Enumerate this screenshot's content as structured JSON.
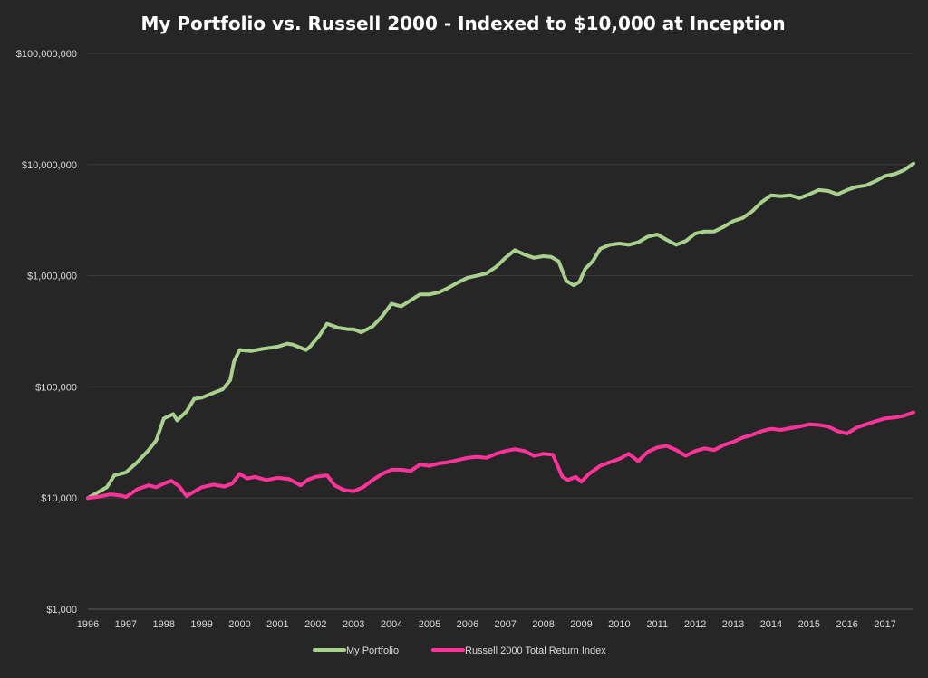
{
  "chart_data": {
    "type": "line",
    "title": "My Portfolio vs. Russell 2000 - Indexed to $10,000 at Inception",
    "xlabel": "",
    "ylabel": "",
    "y_scale": "log",
    "ylim": [
      1000,
      100000000
    ],
    "xlim": [
      1996,
      2017.75
    ],
    "y_ticks": [
      1000,
      10000,
      100000,
      1000000,
      10000000,
      100000000
    ],
    "y_tick_labels": [
      "$1,000",
      "$10,000",
      "$100,000",
      "$1,000,000",
      "$10,000,000",
      "$100,000,000"
    ],
    "x_ticks": [
      1996,
      1997,
      1998,
      1999,
      2000,
      2001,
      2002,
      2003,
      2004,
      2005,
      2006,
      2007,
      2008,
      2009,
      2010,
      2011,
      2012,
      2013,
      2014,
      2015,
      2016,
      2017
    ],
    "x_tick_labels": [
      "1996",
      "1997",
      "1998",
      "1999",
      "2000",
      "2001",
      "2002",
      "2003",
      "2004",
      "2005",
      "2006",
      "2007",
      "2008",
      "2009",
      "2010",
      "2011",
      "2012",
      "2013",
      "2014",
      "2015",
      "2016",
      "2017"
    ],
    "grid": true,
    "legend_position": "bottom",
    "series": [
      {
        "name": "My Portfolio",
        "color": "#a9d18e",
        "x": [
          1996.0,
          1996.5,
          1996.7,
          1997.0,
          1997.3,
          1997.6,
          1997.8,
          1998.0,
          1998.25,
          1998.35,
          1998.6,
          1998.8,
          1999.0,
          1999.3,
          1999.55,
          1999.75,
          1999.85,
          2000.0,
          2000.3,
          2000.6,
          2001.0,
          2001.25,
          2001.4,
          2001.75,
          2001.85,
          2002.1,
          2002.3,
          2002.6,
          2002.85,
          2003.0,
          2003.2,
          2003.5,
          2003.75,
          2004.0,
          2004.25,
          2004.5,
          2004.75,
          2005.0,
          2005.25,
          2005.5,
          2005.75,
          2006.0,
          2006.25,
          2006.5,
          2006.75,
          2007.0,
          2007.25,
          2007.5,
          2007.75,
          2008.0,
          2008.2,
          2008.4,
          2008.6,
          2008.8,
          2008.95,
          2009.1,
          2009.3,
          2009.5,
          2009.75,
          2010.0,
          2010.25,
          2010.5,
          2010.75,
          2011.0,
          2011.25,
          2011.5,
          2011.75,
          2012.0,
          2012.25,
          2012.5,
          2012.75,
          2013.0,
          2013.25,
          2013.5,
          2013.75,
          2014.0,
          2014.25,
          2014.5,
          2014.75,
          2015.0,
          2015.25,
          2015.5,
          2015.75,
          2016.0,
          2016.25,
          2016.5,
          2016.75,
          2017.0,
          2017.25,
          2017.5,
          2017.75
        ],
        "values": [
          10000,
          12500,
          16000,
          17000,
          21000,
          27000,
          33000,
          52000,
          57000,
          50000,
          60000,
          78000,
          80000,
          88000,
          95000,
          115000,
          170000,
          215000,
          210000,
          220000,
          230000,
          245000,
          240000,
          215000,
          230000,
          290000,
          370000,
          340000,
          330000,
          330000,
          310000,
          350000,
          430000,
          560000,
          530000,
          600000,
          680000,
          680000,
          710000,
          780000,
          870000,
          960000,
          1000000,
          1050000,
          1200000,
          1450000,
          1700000,
          1550000,
          1450000,
          1500000,
          1480000,
          1350000,
          900000,
          820000,
          880000,
          1150000,
          1350000,
          1750000,
          1900000,
          1950000,
          1900000,
          2000000,
          2250000,
          2350000,
          2100000,
          1900000,
          2050000,
          2400000,
          2500000,
          2500000,
          2750000,
          3100000,
          3300000,
          3800000,
          4600000,
          5300000,
          5200000,
          5300000,
          5000000,
          5400000,
          5900000,
          5800000,
          5400000,
          5900000,
          6300000,
          6500000,
          7100000,
          7900000,
          8200000,
          8900000,
          10200000
        ]
      },
      {
        "name": "Russell 2000 Total Return Index",
        "color": "#ff3399",
        "x": [
          1996.0,
          1996.3,
          1996.6,
          1996.9,
          1997.0,
          1997.3,
          1997.6,
          1997.8,
          1998.0,
          1998.2,
          1998.4,
          1998.6,
          1998.75,
          1999.0,
          1999.3,
          1999.6,
          1999.8,
          2000.0,
          2000.2,
          2000.4,
          2000.7,
          2001.0,
          2001.3,
          2001.6,
          2001.8,
          2002.0,
          2002.3,
          2002.5,
          2002.75,
          2003.0,
          2003.25,
          2003.5,
          2003.75,
          2004.0,
          2004.25,
          2004.5,
          2004.75,
          2005.0,
          2005.25,
          2005.5,
          2005.75,
          2006.0,
          2006.25,
          2006.5,
          2006.75,
          2007.0,
          2007.25,
          2007.5,
          2007.75,
          2008.0,
          2008.25,
          2008.5,
          2008.65,
          2008.85,
          2009.0,
          2009.2,
          2009.5,
          2009.75,
          2010.0,
          2010.25,
          2010.5,
          2010.75,
          2011.0,
          2011.25,
          2011.5,
          2011.75,
          2012.0,
          2012.25,
          2012.5,
          2012.75,
          2013.0,
          2013.25,
          2013.5,
          2013.75,
          2014.0,
          2014.25,
          2014.5,
          2014.75,
          2015.0,
          2015.25,
          2015.5,
          2015.75,
          2016.0,
          2016.25,
          2016.5,
          2016.75,
          2017.0,
          2017.25,
          2017.5,
          2017.75
        ],
        "values": [
          10000,
          10300,
          10800,
          10500,
          10200,
          12000,
          13000,
          12500,
          13500,
          14300,
          12800,
          10400,
          11200,
          12500,
          13200,
          12700,
          13500,
          16500,
          15000,
          15500,
          14500,
          15200,
          14800,
          13000,
          14600,
          15500,
          16000,
          13000,
          11800,
          11500,
          12500,
          14500,
          16500,
          18000,
          18000,
          17500,
          20000,
          19500,
          20500,
          21000,
          22000,
          23000,
          23500,
          23000,
          25000,
          26500,
          27500,
          26500,
          24000,
          25000,
          24500,
          15500,
          14500,
          15500,
          14000,
          16500,
          19500,
          21000,
          22500,
          25000,
          21500,
          26000,
          28500,
          29500,
          27000,
          24000,
          26500,
          28000,
          27000,
          30000,
          32000,
          35000,
          37000,
          40000,
          42000,
          41000,
          42500,
          44000,
          46000,
          45500,
          44000,
          40000,
          38000,
          43000,
          46000,
          49000,
          52000,
          53000,
          55000,
          59000
        ]
      }
    ]
  }
}
